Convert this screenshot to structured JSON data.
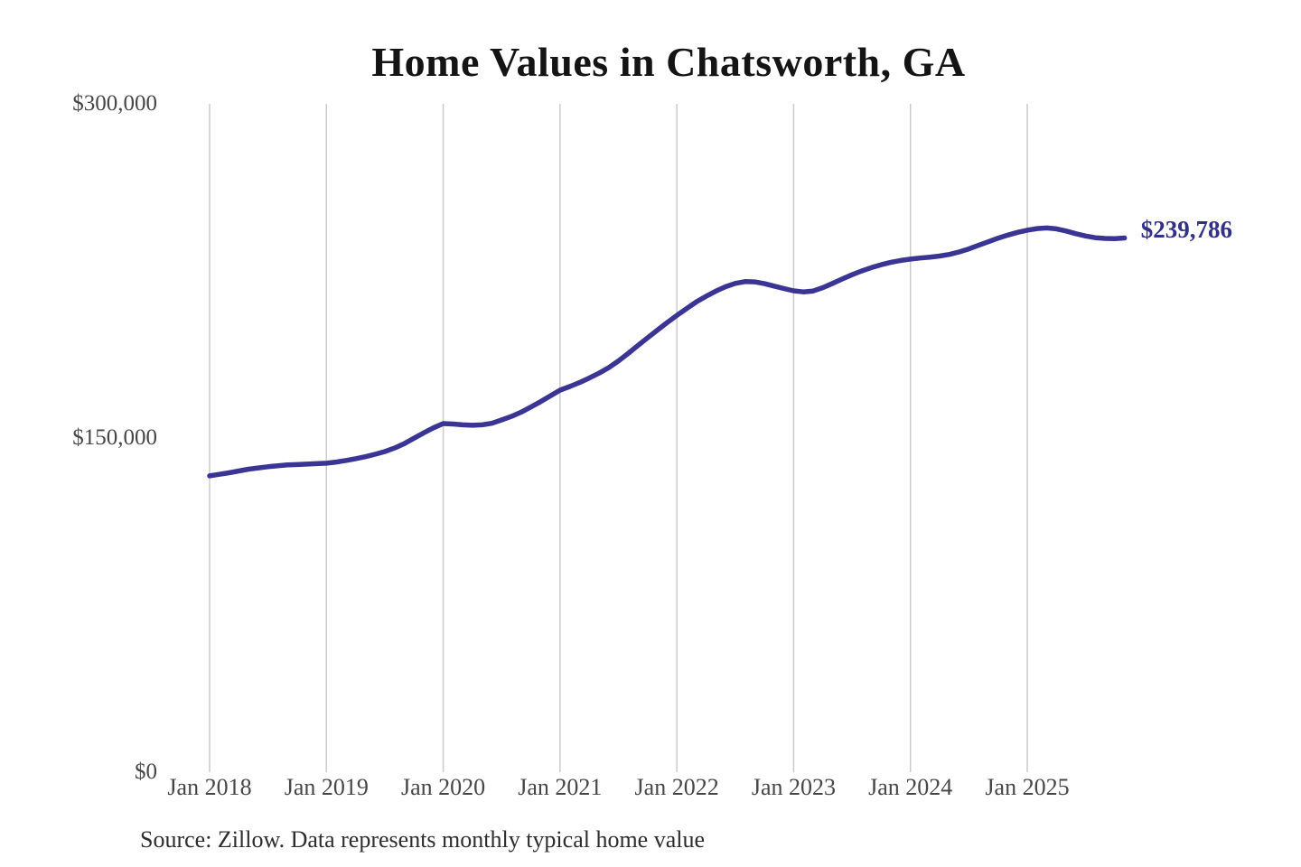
{
  "chart_data": {
    "type": "line",
    "title": "Home Values in Chatsworth, GA",
    "source_note": "Source: Zillow. Data represents monthly typical home value",
    "end_label": "$239,786",
    "end_value": 239786,
    "ylim": [
      0,
      300000
    ],
    "y_ticks": [
      {
        "value": 0,
        "label": "$0"
      },
      {
        "value": 150000,
        "label": "$150,000"
      },
      {
        "value": 300000,
        "label": "$300,000"
      }
    ],
    "x_ticks": [
      "Jan 2018",
      "Jan 2019",
      "Jan 2020",
      "Jan 2021",
      "Jan 2022",
      "Jan 2023",
      "Jan 2024",
      "Jan 2025"
    ],
    "x_start_month": "2018-01",
    "x_end_month": "2025-11",
    "frequency": "monthly",
    "grid": "vertical-only",
    "legend": "none",
    "series": [
      {
        "name": "Typical home value",
        "values": [
          133000,
          133700,
          134400,
          135200,
          136000,
          136600,
          137100,
          137500,
          137900,
          138100,
          138300,
          138500,
          138700,
          139200,
          139900,
          140700,
          141600,
          142700,
          143900,
          145500,
          147500,
          149900,
          152300,
          154600,
          156500,
          156300,
          155900,
          155700,
          155900,
          156600,
          158100,
          159700,
          161600,
          163900,
          166300,
          168900,
          171500,
          173100,
          174900,
          176900,
          179100,
          181600,
          184600,
          188000,
          191500,
          195000,
          198400,
          201800,
          205000,
          208100,
          211100,
          213600,
          215900,
          217900,
          219400,
          220200,
          220100,
          219300,
          218200,
          217100,
          216100,
          215600,
          216000,
          217500,
          219400,
          221400,
          223300,
          225000,
          226500,
          227800,
          228900,
          229700,
          230300,
          230800,
          231200,
          231700,
          232400,
          233500,
          234900,
          236500,
          238100,
          239700,
          241100,
          242300,
          243300,
          244000,
          244300,
          243900,
          242900,
          241700,
          240700,
          239900,
          239600,
          239500,
          239786
        ]
      }
    ],
    "colors": {
      "line": "#3a3494",
      "value_label": "#333088",
      "grid": "#cbcbcb",
      "tick_text": "#464646",
      "title_text": "#141414",
      "source_text": "#2d2d2d"
    }
  }
}
